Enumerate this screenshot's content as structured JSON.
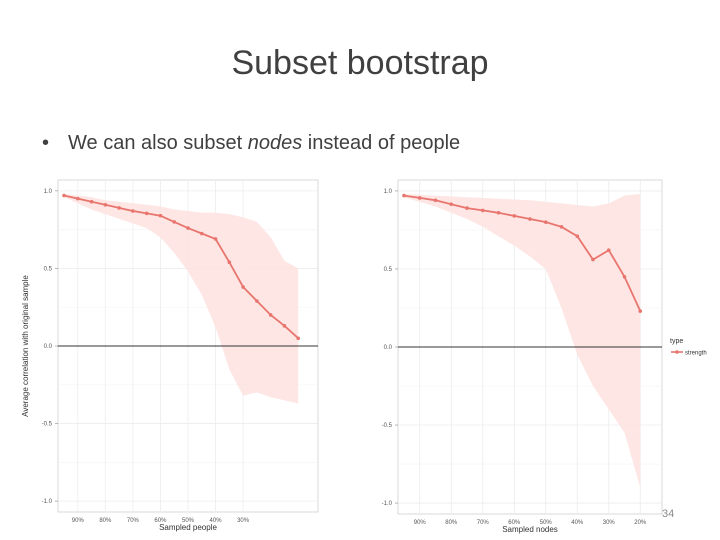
{
  "slide": {
    "title": "Subset bootstrap",
    "bullet_pre": "We can also subset ",
    "bullet_em": "nodes",
    "bullet_post": " instead of people",
    "page_number": "34"
  },
  "colors": {
    "line": "#e8756e",
    "ribbon": "#fde3e1",
    "zero_line": "#333333",
    "grid": "#ececec"
  },
  "chart_data": [
    {
      "type": "line",
      "xlabel": "Sampled people",
      "ylabel": "Average correlation with original sample",
      "x_ticks": [
        "90%",
        "80%",
        "70%",
        "60%",
        "50%",
        "40%",
        "30%"
      ],
      "y_ticks": [
        "1.0",
        "0.5",
        "0.0",
        "-0.5",
        "-1.0"
      ],
      "ylim": [
        -1.0,
        1.0
      ],
      "xlim": [
        0.95,
        0.05
      ],
      "hline": 0,
      "series": [
        {
          "x": [
            0.95,
            0.9,
            0.85,
            0.8,
            0.75,
            0.7,
            0.65,
            0.6,
            0.55,
            0.5,
            0.45,
            0.4,
            0.35,
            0.3,
            0.25,
            0.2,
            0.15,
            0.1
          ],
          "y": [
            0.97,
            0.95,
            0.93,
            0.91,
            0.89,
            0.87,
            0.855,
            0.84,
            0.8,
            0.76,
            0.725,
            0.69,
            0.54,
            0.38,
            0.29,
            0.2,
            0.13,
            0.05
          ],
          "lower": [
            0.96,
            0.92,
            0.88,
            0.85,
            0.82,
            0.79,
            0.76,
            0.7,
            0.6,
            0.48,
            0.33,
            0.12,
            -0.15,
            -0.32,
            -0.3,
            -0.33,
            -0.35,
            -0.37
          ],
          "upper": [
            0.98,
            0.97,
            0.96,
            0.94,
            0.93,
            0.92,
            0.91,
            0.9,
            0.88,
            0.87,
            0.86,
            0.86,
            0.85,
            0.83,
            0.8,
            0.7,
            0.55,
            0.5
          ]
        }
      ]
    },
    {
      "type": "line",
      "xlabel": "Sampled nodes",
      "ylabel": "",
      "x_ticks": [
        "90%",
        "80%",
        "70%",
        "60%",
        "50%",
        "40%",
        "30%",
        "20%"
      ],
      "y_ticks": [
        "1.0",
        "0.5",
        "0.0",
        "-0.5",
        "-1.0"
      ],
      "ylim": [
        -1.0,
        1.0
      ],
      "xlim": [
        0.95,
        0.15
      ],
      "hline": 0,
      "legend": {
        "title": "type",
        "entries": [
          "strength"
        ],
        "position": "right"
      },
      "series": [
        {
          "name": "strength",
          "x": [
            0.95,
            0.9,
            0.85,
            0.8,
            0.75,
            0.7,
            0.65,
            0.6,
            0.55,
            0.5,
            0.45,
            0.4,
            0.35,
            0.3,
            0.25,
            0.2
          ],
          "y": [
            0.97,
            0.955,
            0.94,
            0.915,
            0.89,
            0.875,
            0.86,
            0.84,
            0.82,
            0.8,
            0.77,
            0.71,
            0.56,
            0.62,
            0.45,
            0.23
          ],
          "lower": [
            0.96,
            0.93,
            0.9,
            0.86,
            0.82,
            0.77,
            0.71,
            0.65,
            0.58,
            0.5,
            0.25,
            -0.05,
            -0.25,
            -0.4,
            -0.55,
            -0.9
          ],
          "upper": [
            0.98,
            0.975,
            0.97,
            0.965,
            0.96,
            0.955,
            0.95,
            0.945,
            0.94,
            0.93,
            0.92,
            0.91,
            0.9,
            0.92,
            0.97,
            0.98
          ]
        }
      ]
    }
  ]
}
